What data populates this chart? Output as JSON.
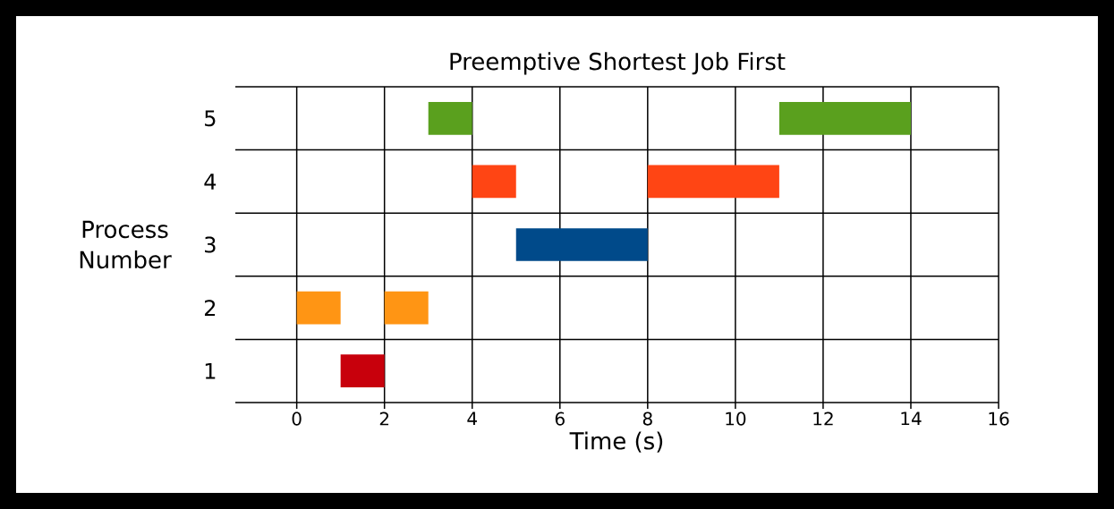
{
  "chart_data": {
    "type": "bar",
    "orientation": "horizontal",
    "title": "Preemptive Shortest Job First",
    "xlabel": "Time (s)",
    "ylabel": "Process Number",
    "categories": [
      "5",
      "4",
      "3",
      "2",
      "1"
    ],
    "series": [
      {
        "values": [
          1,
          1,
          3,
          1,
          1
        ],
        "base": [
          3,
          4,
          5,
          0,
          1
        ],
        "colors": [
          "#5aa01e",
          "#ff4514",
          "#004a8a",
          "#ff9514",
          "#c8000c"
        ]
      },
      {
        "values": [
          3,
          3,
          null,
          1,
          null
        ],
        "base": [
          11,
          8,
          null,
          2,
          null
        ],
        "colors": [
          "#5aa01e",
          "#ff4514",
          "#004a8a",
          "#ff9514",
          "#c8000c"
        ]
      }
    ],
    "xlim": [
      -1.4,
      16
    ],
    "xticks": [
      0,
      2,
      4,
      6,
      8,
      10,
      12,
      14,
      16
    ],
    "grid": true
  }
}
